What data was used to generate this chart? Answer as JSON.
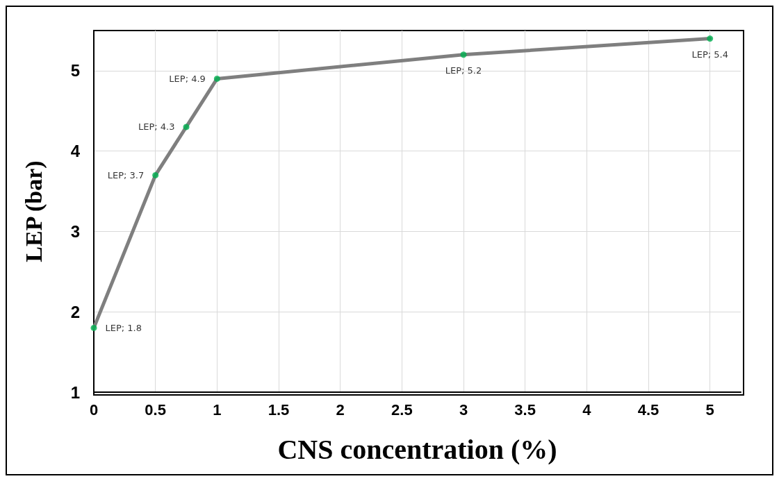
{
  "chart_data": {
    "type": "line",
    "xlabel": "CNS concentration (%)",
    "ylabel": "LEP (bar)",
    "x": [
      0,
      0.5,
      0.75,
      1,
      3,
      5
    ],
    "series": [
      {
        "color": "#7f7f7f",
        "marker": "none",
        "values": [
          1.8,
          3.7,
          4.3,
          4.9,
          5.2,
          5.4
        ]
      },
      {
        "type": "scatter",
        "color": "#00b050",
        "marker": "circle",
        "values": [
          1.8,
          3.7,
          4.3,
          4.9,
          5.2,
          5.4
        ],
        "value_labels": [
          "LEP; 1.8",
          "LEP; 3.7",
          "LEP; 4.3",
          "LEP; 4.9",
          "LEP; 5.2",
          "LEP; 5.4"
        ]
      }
    ],
    "xlim": [
      0,
      5.25
    ],
    "xticks": [
      0,
      0.5,
      1,
      1.5,
      2,
      2.5,
      3,
      3.5,
      4,
      4.5,
      5
    ],
    "ylim": [
      1,
      5.5
    ],
    "yticks": [
      1,
      2,
      3,
      4,
      5
    ],
    "grid": true
  }
}
